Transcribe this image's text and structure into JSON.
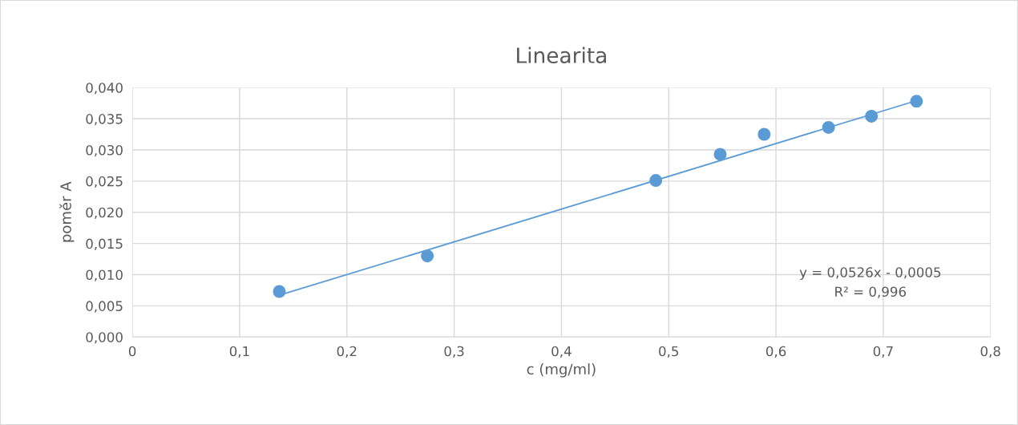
{
  "chart_data": {
    "type": "scatter",
    "title": "Linearita",
    "xlabel": "c (mg/ml)",
    "ylabel": "poměr A",
    "series": [
      {
        "color": "#5b9bd5",
        "marker": "circle",
        "x": [
          0.137,
          0.275,
          0.488,
          0.548,
          0.589,
          0.649,
          0.689,
          0.731
        ],
        "values": [
          0.0073,
          0.013,
          0.0251,
          0.0293,
          0.0325,
          0.0336,
          0.0354,
          0.0378
        ]
      },
      {
        "type": "line",
        "color": "#5b9bd5",
        "x": [
          0.137,
          0.731
        ],
        "values": [
          0.0067,
          0.0379
        ],
        "line_style": "solid"
      }
    ],
    "annotations": [
      "y = 0,0526x - 0,0005",
      "R² = 0,996"
    ],
    "xlim": [
      0,
      0.8
    ],
    "ylim": [
      0,
      0.04
    ],
    "xticks": [
      0,
      {
        "value": 0.1,
        "label": "0,1"
      },
      {
        "value": 0.2,
        "label": "0,2"
      },
      {
        "value": 0.3,
        "label": "0,3"
      },
      {
        "value": 0.4,
        "label": "0,4"
      },
      {
        "value": 0.5,
        "label": "0,5"
      },
      {
        "value": 0.6,
        "label": "0,6"
      },
      {
        "value": 0.7,
        "label": "0,7"
      },
      {
        "value": 0.8,
        "label": "0,8"
      }
    ],
    "yticks": [
      {
        "value": 0,
        "label": "0,000"
      },
      {
        "value": 0.005,
        "label": "0,005"
      },
      {
        "value": 0.01,
        "label": "0,010"
      },
      {
        "value": 0.015,
        "label": "0,015"
      },
      {
        "value": 0.02,
        "label": "0,020"
      },
      {
        "value": 0.025,
        "label": "0,025"
      },
      {
        "value": 0.03,
        "label": "0,030"
      },
      {
        "value": 0.035,
        "label": "0,035"
      },
      {
        "value": 0.04,
        "label": "0,040"
      }
    ],
    "grid": true,
    "legend": false
  }
}
